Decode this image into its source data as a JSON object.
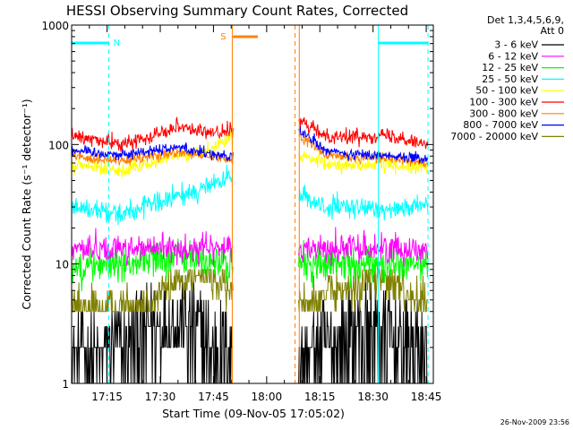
{
  "chart_data": {
    "type": "line",
    "title": "HESSI Observing Summary Count Rates, Corrected",
    "xlabel": "Start Time (09-Nov-05 17:05:02)",
    "ylabel": "Corrected Count Rate (s⁻¹ detector⁻¹)",
    "ylog": true,
    "ylim": [
      1,
      1000
    ],
    "xlim_minutes": [
      1025.0,
      1127.0
    ],
    "x_ticks": [
      {
        "minute": 1035,
        "label": "17:15"
      },
      {
        "minute": 1050,
        "label": "17:30"
      },
      {
        "minute": 1065,
        "label": "17:45"
      },
      {
        "minute": 1080,
        "label": "18:00"
      },
      {
        "minute": 1095,
        "label": "18:15"
      },
      {
        "minute": 1110,
        "label": "18:30"
      },
      {
        "minute": 1125,
        "label": "18:45"
      }
    ],
    "y_ticks": [
      {
        "value": 1,
        "label": "1"
      },
      {
        "value": 10,
        "label": "10"
      },
      {
        "value": 100,
        "label": "100"
      },
      {
        "value": 1000,
        "label": "1000"
      }
    ],
    "legend_header": [
      "Det 1,3,4,5,6,9,",
      "Att 0"
    ],
    "legend_placement": "right",
    "gap_minutes": [
      1070.5,
      1089.0
    ],
    "segments_minutes": [
      [
        1025.0,
        1070.5
      ],
      [
        1089.0,
        1125.5
      ]
    ],
    "series": [
      {
        "name": "3 - 6 keV",
        "color": "#000000",
        "left_base": [
          1.8,
          1.8,
          2.5,
          3.5,
          3.8,
          2.8,
          2.0
        ],
        "right_base": [
          1.8,
          2.2,
          3.0,
          3.3,
          2.5,
          2.0
        ],
        "noise": 0.55
      },
      {
        "name": "6 - 12 keV",
        "color": "#ff00ff",
        "left_base": [
          13.5,
          13.5,
          13.5,
          13.5,
          13.5,
          13.5,
          13.5
        ],
        "right_base": [
          13.5,
          13.5,
          13.5,
          13.5,
          13.5,
          13.5
        ],
        "noise": 0.08
      },
      {
        "name": "12 - 25 keV",
        "color": "#00ff00",
        "left_base": [
          9.5,
          9.8,
          10.0,
          11.5,
          11.5,
          10.5,
          10.0
        ],
        "right_base": [
          10.0,
          9.8,
          10.0,
          10.0,
          9.8,
          9.8
        ],
        "noise": 0.1
      },
      {
        "name": "25 - 50 keV",
        "color": "#00ffff",
        "left_base": [
          30,
          28,
          27,
          31,
          37,
          44,
          53
        ],
        "right_base": [
          38,
          30,
          29,
          29,
          30,
          30
        ],
        "noise": 0.06
      },
      {
        "name": "50 - 100 keV",
        "color": "#ffff00",
        "left_base": [
          67,
          64,
          62,
          70,
          82,
          88,
          115
        ],
        "right_base": [
          80,
          68,
          67,
          68,
          66,
          64
        ],
        "noise": 0.04
      },
      {
        "name": "100 - 300 keV",
        "color": "#ff0000",
        "left_base": [
          118,
          108,
          100,
          120,
          145,
          125,
          130
        ],
        "right_base": [
          155,
          120,
          115,
          120,
          115,
          100
        ],
        "noise": 0.04
      },
      {
        "name": "300 - 800 keV",
        "color": "#ff8000",
        "left_base": [
          80,
          76,
          72,
          80,
          85,
          80,
          72
        ],
        "right_base": [
          120,
          82,
          78,
          78,
          75,
          70
        ],
        "noise": 0.03
      },
      {
        "name": "800 - 7000 keV",
        "color": "#0000ff",
        "left_base": [
          90,
          85,
          82,
          90,
          95,
          85,
          78
        ],
        "right_base": [
          130,
          90,
          82,
          82,
          80,
          75
        ],
        "noise": 0.03
      },
      {
        "name": "7000 - 20000 keV",
        "color": "#808000",
        "left_base": [
          4.0,
          4.2,
          4.3,
          5.0,
          7.5,
          8.0,
          5.5
        ],
        "right_base": [
          5.0,
          5.5,
          6.0,
          8.0,
          6.0,
          4.8
        ],
        "noise": 0.12
      }
    ],
    "annotations": {
      "night_markers": [
        {
          "label": "N",
          "start_minute": 1025.0,
          "end_minute": 1035.5,
          "color": "#00ffff"
        },
        {
          "label": "",
          "start_minute": 1111.5,
          "end_minute": 1125.5,
          "color": "#00ffff"
        }
      ],
      "saa_marker": {
        "label": "S",
        "start_minute": 1070.5,
        "end_minute": 1077.5,
        "color": "#ff8000"
      },
      "vertical_lines": [
        {
          "minute": 1035.5,
          "color": "#00ffff",
          "dashed": true
        },
        {
          "minute": 1070.3,
          "color": "#ff8000",
          "dashed": false
        },
        {
          "minute": 1088.0,
          "color": "#ff8000",
          "dashed": true
        },
        {
          "minute": 1089.2,
          "color": "#ff8000",
          "dashed": false
        },
        {
          "minute": 1111.5,
          "color": "#00ffff",
          "dashed": false
        },
        {
          "minute": 1125.5,
          "color": "#00ffff",
          "dashed": true
        }
      ]
    },
    "timestamp": "26-Nov-2009 23:56"
  }
}
